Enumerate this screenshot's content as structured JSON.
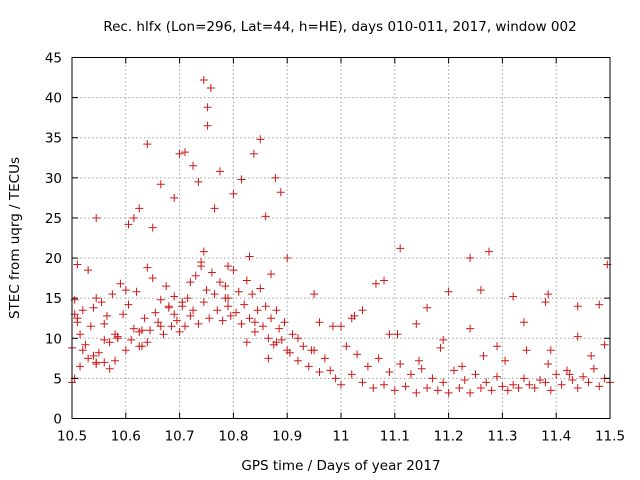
{
  "chart_data": {
    "type": "scatter",
    "title": "Rec. hlfx (Lon=296, Lat=44, h=HE), days 010-011, 2017, window 002",
    "xlabel": "GPS time / Days of year 2017",
    "ylabel": "STEC from uqrg / TECUs",
    "xlim": [
      10.5,
      11.5
    ],
    "ylim": [
      0,
      45
    ],
    "xticks": [
      "10.5",
      "10.6",
      "10.7",
      "10.8",
      "10.9",
      "11",
      "11.1",
      "11.2",
      "11.3",
      "11.4",
      "11.5"
    ],
    "yticks": [
      "0",
      "5",
      "10",
      "15",
      "20",
      "25",
      "30",
      "35",
      "40",
      "45"
    ],
    "grid": true,
    "marker": "plus",
    "color": "#cc1a1a",
    "series": [
      {
        "name": "STEC",
        "x": [
          10.5,
          10.5,
          10.505,
          10.505,
          10.51,
          10.51,
          10.515,
          10.515,
          10.52,
          10.525,
          10.53,
          10.53,
          10.535,
          10.54,
          10.545,
          10.545,
          10.55,
          10.555,
          10.56,
          10.56,
          10.565,
          10.57,
          10.575,
          10.58,
          10.585,
          10.59,
          10.595,
          10.6,
          10.605,
          10.61,
          10.615,
          10.62,
          10.625,
          10.63,
          10.635,
          10.64,
          10.645,
          10.65,
          10.655,
          10.66,
          10.665,
          10.67,
          10.675,
          10.68,
          10.685,
          10.69,
          10.695,
          10.7,
          10.705,
          10.71,
          10.715,
          10.72,
          10.725,
          10.73,
          10.735,
          10.74,
          10.745,
          10.75,
          10.755,
          10.76,
          10.765,
          10.77,
          10.775,
          10.78,
          10.785,
          10.79,
          10.795,
          10.8,
          10.805,
          10.81,
          10.815,
          10.82,
          10.825,
          10.83,
          10.835,
          10.84,
          10.845,
          10.85,
          10.855,
          10.86,
          10.865,
          10.87,
          10.875,
          10.88,
          10.885,
          10.89,
          10.895,
          10.9,
          10.91,
          10.92,
          10.93,
          10.94,
          10.95,
          10.96,
          10.97,
          10.98,
          10.99,
          11.0,
          11.01,
          11.02,
          11.03,
          11.04,
          11.05,
          11.06,
          11.07,
          11.08,
          11.09,
          11.1,
          11.11,
          11.12,
          11.13,
          11.14,
          11.15,
          11.16,
          11.17,
          11.18,
          11.19,
          11.2,
          11.21,
          11.22,
          11.23,
          11.24,
          11.25,
          11.26,
          11.27,
          11.28,
          11.29,
          11.3,
          11.31,
          11.32,
          11.33,
          11.34,
          11.35,
          11.36,
          11.37,
          11.38,
          11.39,
          11.4,
          11.41,
          11.42,
          11.43,
          11.44,
          11.45,
          11.46,
          11.47,
          11.48,
          11.49,
          11.5,
          10.745,
          10.752,
          10.758,
          10.765,
          10.752,
          10.64,
          10.625,
          10.665,
          10.7,
          10.71,
          10.735,
          10.85,
          10.838,
          10.878,
          10.888,
          10.545,
          10.605,
          10.615,
          10.65,
          10.69,
          10.725,
          10.775,
          10.8,
          10.815,
          10.86,
          11.11,
          11.24,
          11.275,
          11.385,
          11.495,
          10.52,
          10.56,
          10.58,
          10.63,
          10.68,
          10.72,
          10.79,
          10.83,
          10.87,
          10.9,
          10.95,
          11.02,
          11.08,
          11.16,
          11.2,
          11.26,
          11.32,
          11.38,
          11.44,
          11.48,
          10.51,
          10.54,
          10.57,
          10.6,
          10.64,
          10.69,
          10.74,
          10.79,
          10.84,
          10.88,
          10.92,
          10.96,
          11.0,
          11.04,
          11.09,
          11.14,
          11.19,
          11.24,
          11.29,
          11.34,
          11.39,
          11.44,
          11.49,
          10.505,
          10.545,
          10.585,
          10.625,
          10.665,
          10.705,
          10.745,
          10.785,
          10.825,
          10.865,
          10.905,
          10.945,
          10.985,
          11.025,
          11.065,
          11.105,
          11.145,
          11.185,
          11.225,
          11.265,
          11.305,
          11.345,
          11.385,
          11.425,
          11.465
        ],
        "y": [
          4.5,
          8.8,
          5.0,
          14.8,
          12.0,
          19.2,
          6.5,
          10.5,
          13.5,
          9.2,
          7.5,
          18.5,
          11.5,
          13.8,
          6.8,
          15.0,
          8.2,
          14.5,
          7.0,
          11.8,
          12.8,
          9.5,
          15.5,
          7.2,
          10.2,
          16.8,
          13.0,
          8.5,
          14.2,
          9.8,
          11.2,
          15.8,
          10.8,
          9.0,
          12.5,
          18.8,
          11.0,
          17.5,
          13.2,
          12.0,
          14.8,
          10.5,
          16.5,
          13.8,
          11.5,
          15.2,
          12.2,
          10.8,
          14.0,
          11.5,
          15.0,
          12.8,
          13.5,
          17.8,
          11.8,
          19.5,
          14.5,
          16.0,
          12.5,
          18.2,
          15.5,
          13.5,
          17.0,
          12.2,
          16.5,
          14.0,
          12.8,
          18.5,
          13.2,
          15.8,
          11.8,
          14.2,
          17.2,
          12.5,
          15.5,
          10.8,
          13.5,
          16.2,
          11.5,
          14.0,
          10.0,
          12.5,
          9.2,
          13.5,
          11.2,
          9.8,
          12.0,
          8.5,
          10.5,
          7.2,
          9.0,
          6.5,
          8.5,
          5.8,
          7.5,
          6.0,
          5.0,
          4.2,
          9.0,
          5.5,
          8.0,
          4.5,
          6.5,
          3.8,
          7.5,
          4.2,
          5.8,
          3.5,
          6.8,
          4.0,
          5.5,
          3.2,
          6.2,
          3.8,
          5.0,
          3.5,
          4.5,
          3.2,
          6.0,
          3.8,
          4.8,
          3.2,
          5.5,
          3.8,
          4.5,
          3.5,
          5.2,
          4.0,
          3.5,
          4.2,
          3.8,
          5.0,
          4.2,
          3.8,
          4.8,
          4.5,
          3.5,
          5.5,
          4.2,
          6.0,
          4.8,
          3.8,
          5.2,
          4.5,
          6.2,
          4.0,
          5.0,
          4.5,
          42.2,
          38.8,
          41.2,
          26.2,
          36.5,
          34.2,
          26.2,
          29.2,
          33.0,
          33.2,
          29.5,
          34.8,
          33.0,
          30.0,
          28.2,
          25.0,
          24.2,
          25.0,
          23.8,
          27.5,
          31.5,
          30.8,
          28.0,
          29.8,
          25.2,
          21.2,
          20.0,
          20.8,
          15.5,
          19.2,
          8.5,
          9.8,
          10.5,
          11.0,
          14.0,
          17.0,
          19.0,
          20.2,
          18.0,
          20.0,
          15.5,
          12.5,
          17.2,
          13.8,
          15.8,
          16.0,
          15.2,
          14.5,
          14.0,
          14.2,
          12.5,
          7.8,
          6.2,
          16.0,
          9.5,
          13.0,
          19.0,
          15.0,
          12.0,
          9.5,
          10.0,
          12.0,
          11.5,
          13.5,
          10.5,
          11.8,
          9.8,
          11.2,
          9.0,
          12.0,
          8.5,
          10.2,
          9.2,
          13.0,
          7.0,
          10.0,
          9.0,
          11.5,
          14.5,
          20.8,
          15.0,
          9.5,
          7.5,
          8.2,
          8.5,
          11.5,
          12.8,
          16.8,
          10.5,
          7.2,
          8.8,
          6.5,
          7.8,
          7.2,
          8.5,
          6.8,
          5.5,
          7.8
        ]
      }
    ]
  }
}
